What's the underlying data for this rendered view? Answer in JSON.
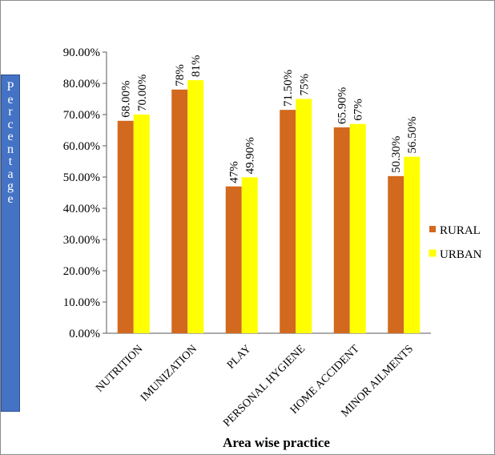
{
  "chart_data": {
    "type": "bar",
    "title": "",
    "xlabel": "Area wise  practice",
    "ylabel": "Percentage",
    "ylim": [
      0,
      90
    ],
    "yticks": [
      "0.00%",
      "10.00%",
      "20.00%",
      "30.00%",
      "40.00%",
      "50.00%",
      "60.00%",
      "70.00%",
      "80.00%",
      "90.00%"
    ],
    "grid": false,
    "legend_position": "right",
    "categories": [
      "NUTRITION",
      "IMUNIZATION",
      "PLAY",
      "PERSONAL HYGIENE",
      "HOME ACCIDENT",
      "MINOR AILMENTS"
    ],
    "series": [
      {
        "name": "RURAL",
        "color": "#d2691e",
        "values": [
          68.0,
          78.0,
          47.0,
          71.5,
          65.9,
          50.3
        ],
        "labels": [
          "68.00%",
          "78%",
          "47%",
          "71.50%",
          "65.90%",
          "50.30%"
        ]
      },
      {
        "name": "URBAN",
        "color": "#ffff00",
        "values": [
          70.0,
          81.0,
          49.9,
          75.0,
          67.0,
          56.5
        ],
        "labels": [
          "70.00%",
          "81%",
          "49.90%",
          "75%",
          "67%",
          "56.50%"
        ]
      }
    ]
  }
}
